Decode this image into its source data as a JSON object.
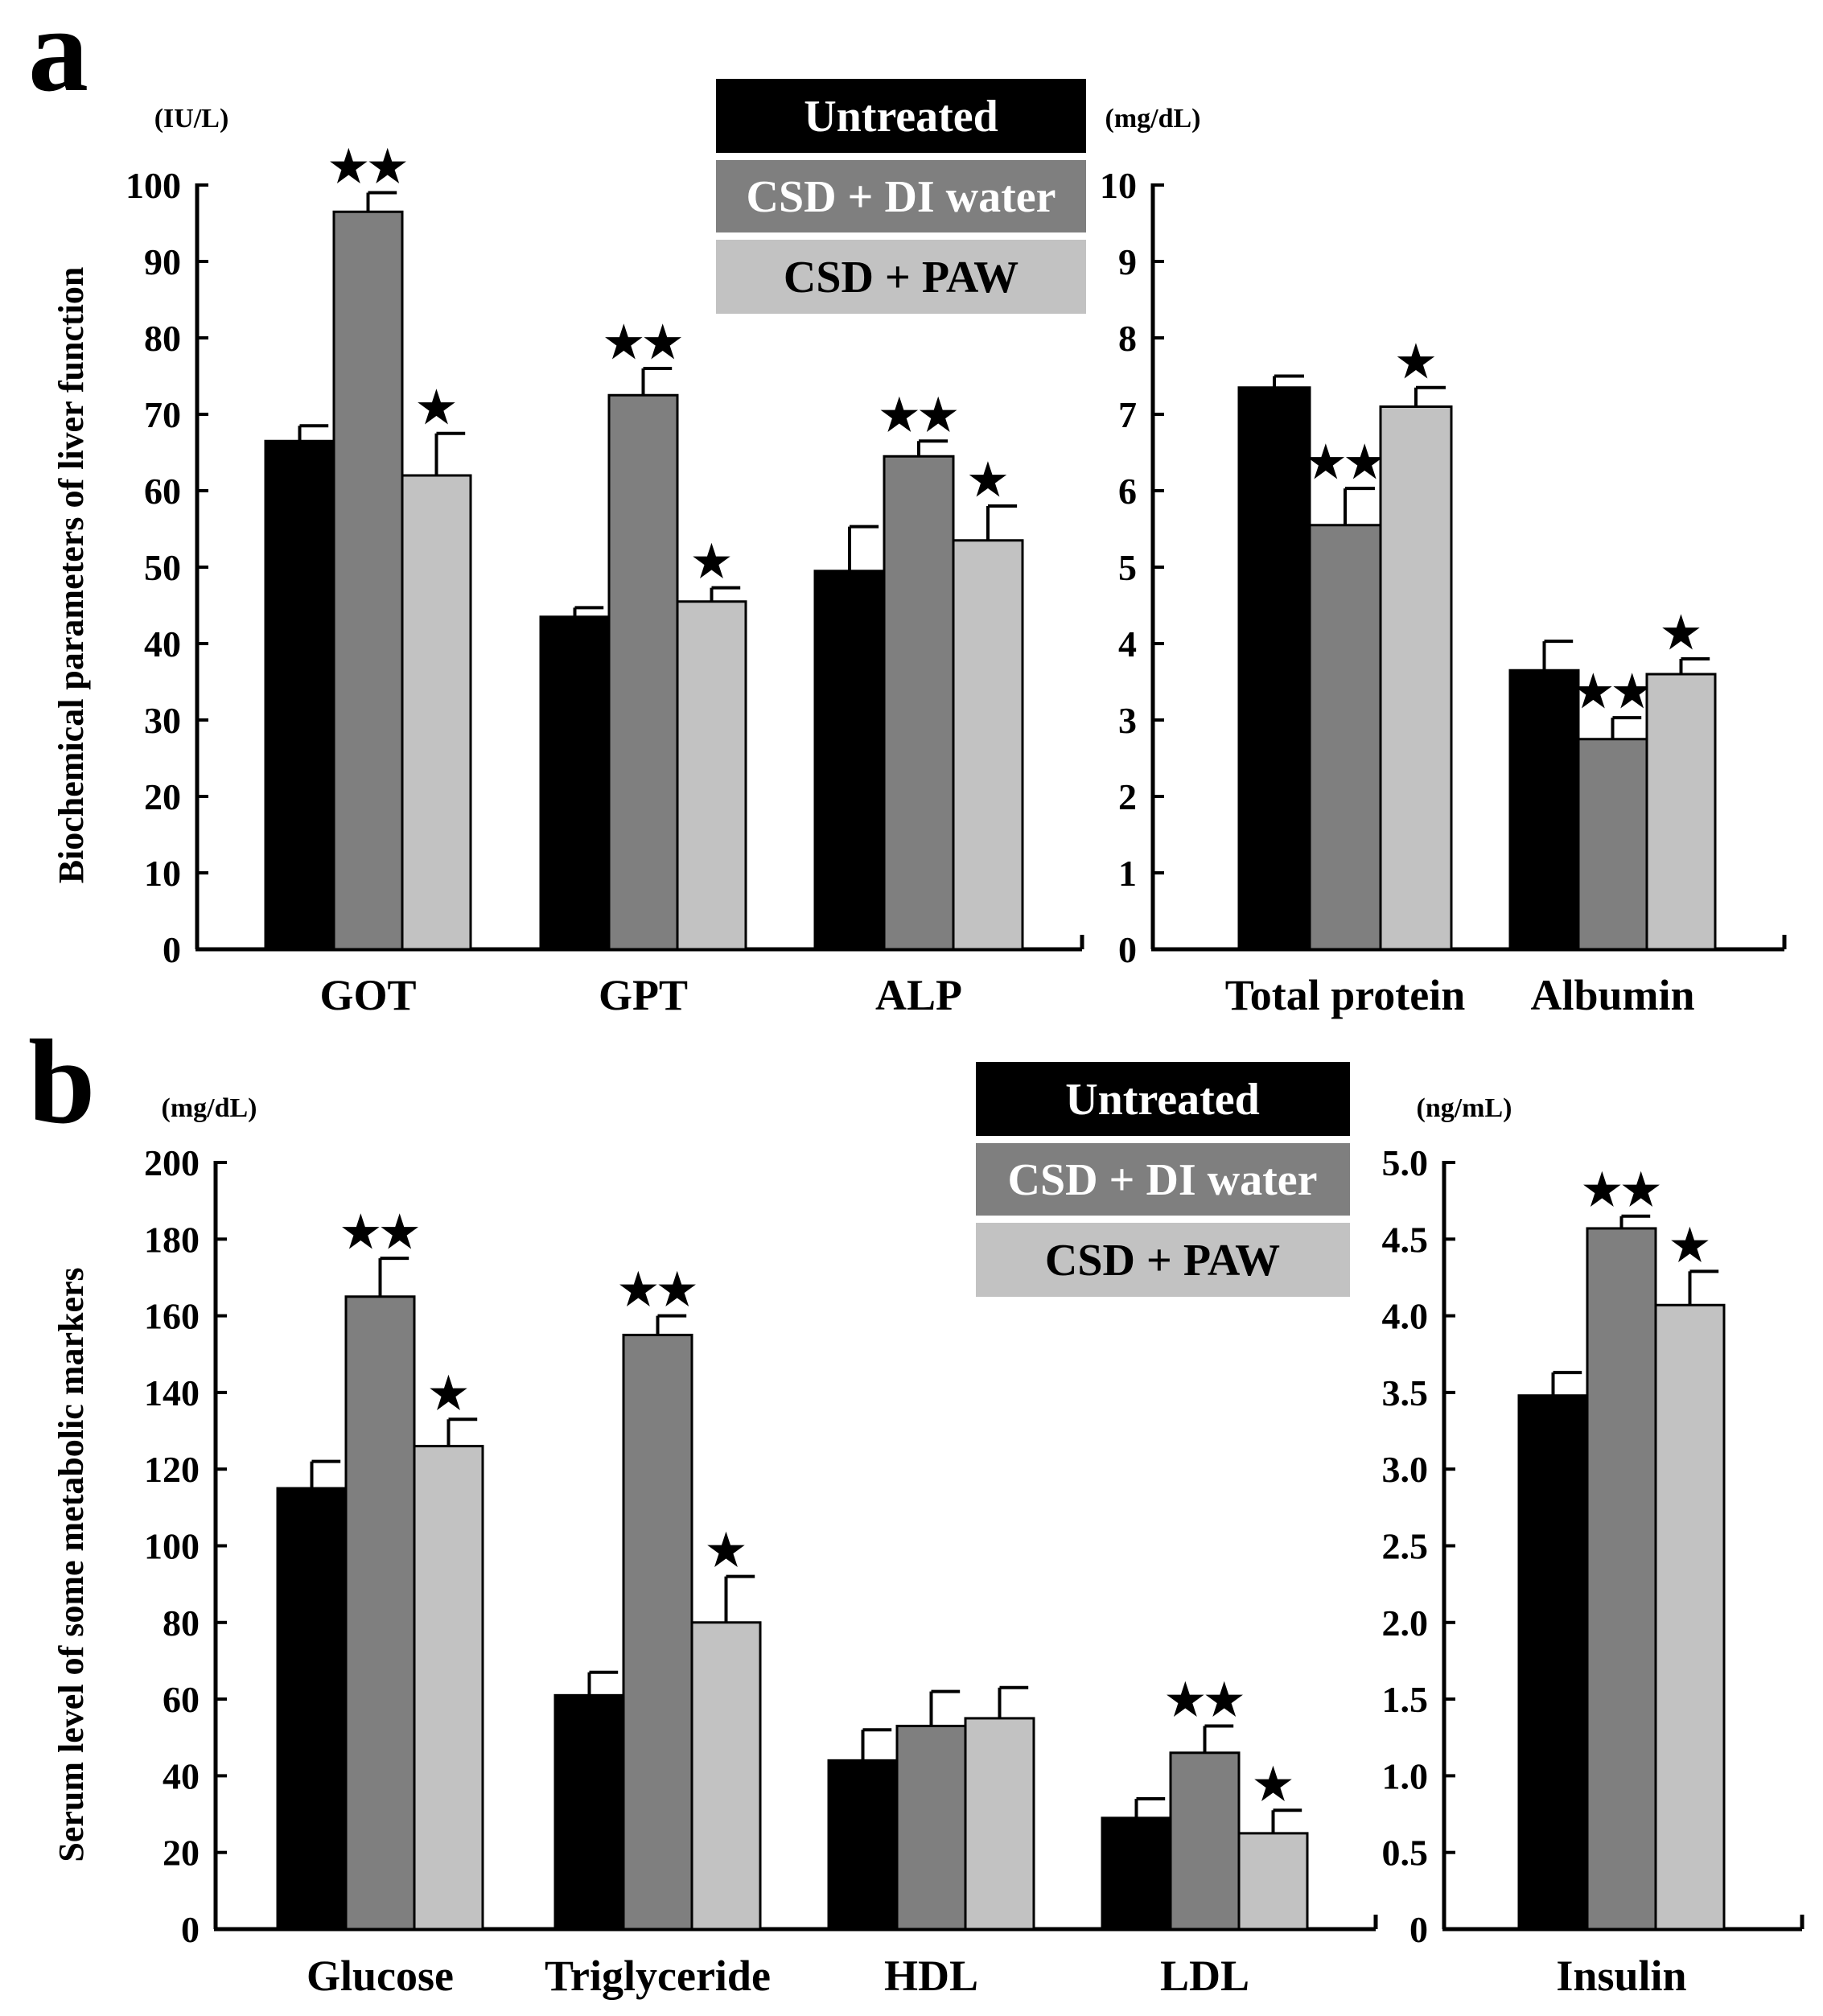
{
  "colors": {
    "untreated": "#000000",
    "di_water": "#7f7f7f",
    "paw": "#c2c2c2",
    "axis": "#000000",
    "background": "#ffffff"
  },
  "legend": {
    "items": [
      {
        "label": "Untreated",
        "series": "untreated",
        "text_color": "#ffffff"
      },
      {
        "label": "CSD + DI water",
        "series": "di_water",
        "text_color": "#ffffff"
      },
      {
        "label": "CSD + PAW",
        "series": "paw",
        "text_color": "#000000"
      }
    ]
  },
  "star_icon": "star-glyph",
  "panels": [
    {
      "label": "a",
      "ylabel": "Biochemical parameters of liver function"
    },
    {
      "label": "b",
      "ylabel": "Serum level of some metabolic markers"
    }
  ],
  "chart_data": [
    {
      "id": "a1",
      "panel": "a",
      "type": "bar",
      "unit": "(IU/L)",
      "ylim": [
        0,
        100
      ],
      "yticks": [
        0,
        10,
        20,
        30,
        40,
        50,
        60,
        70,
        80,
        90,
        100
      ],
      "categories": [
        "GOT",
        "GPT",
        "ALP"
      ],
      "series": [
        {
          "name": "Untreated",
          "key": "untreated",
          "values": [
            66.5,
            43.5,
            49.5
          ],
          "errors": [
            2,
            1.2,
            5.8
          ],
          "sig": [
            "",
            "",
            ""
          ]
        },
        {
          "name": "CSD + DI water",
          "key": "di_water",
          "values": [
            96.5,
            72.5,
            64.5
          ],
          "errors": [
            2.5,
            3.5,
            2
          ],
          "sig": [
            "★★",
            "★★",
            "★★"
          ]
        },
        {
          "name": "CSD + PAW",
          "key": "paw",
          "values": [
            62,
            45.5,
            53.5
          ],
          "errors": [
            5.5,
            1.8,
            4.5
          ],
          "sig": [
            "★",
            "★",
            "★"
          ]
        }
      ]
    },
    {
      "id": "a2",
      "panel": "a",
      "type": "bar",
      "unit": "(mg/dL)",
      "ylim": [
        0,
        10
      ],
      "yticks": [
        0,
        1,
        2,
        3,
        4,
        5,
        6,
        7,
        8,
        9,
        10
      ],
      "categories": [
        "Total protein",
        "Albumin"
      ],
      "series": [
        {
          "name": "Untreated",
          "key": "untreated",
          "values": [
            7.35,
            3.65
          ],
          "errors": [
            0.15,
            0.38
          ],
          "sig": [
            "",
            ""
          ]
        },
        {
          "name": "CSD + DI water",
          "key": "di_water",
          "values": [
            5.55,
            2.75
          ],
          "errors": [
            0.48,
            0.28
          ],
          "sig": [
            "★★",
            "★★"
          ]
        },
        {
          "name": "CSD + PAW",
          "key": "paw",
          "values": [
            7.1,
            3.6
          ],
          "errors": [
            0.25,
            0.2
          ],
          "sig": [
            "★",
            "★"
          ]
        }
      ]
    },
    {
      "id": "b1",
      "panel": "b",
      "type": "bar",
      "unit": "(mg/dL)",
      "ylim": [
        0,
        200
      ],
      "yticks": [
        0,
        20,
        40,
        60,
        80,
        100,
        120,
        140,
        160,
        180,
        200
      ],
      "categories": [
        "Glucose",
        "Triglyceride",
        "HDL",
        "LDL"
      ],
      "series": [
        {
          "name": "Untreated",
          "key": "untreated",
          "values": [
            115,
            61,
            44,
            29
          ],
          "errors": [
            7,
            6,
            8,
            5
          ],
          "sig": [
            "",
            "",
            "",
            ""
          ]
        },
        {
          "name": "CSD + DI water",
          "key": "di_water",
          "values": [
            165,
            155,
            53,
            46
          ],
          "errors": [
            10,
            5,
            9,
            7
          ],
          "sig": [
            "★★",
            "★★",
            "",
            "★★"
          ]
        },
        {
          "name": "CSD + PAW",
          "key": "paw",
          "values": [
            126,
            80,
            55,
            25
          ],
          "errors": [
            7,
            12,
            8,
            6
          ],
          "sig": [
            "★",
            "★",
            "",
            "★"
          ]
        }
      ]
    },
    {
      "id": "b2",
      "panel": "b",
      "type": "bar",
      "unit": "(ng/mL)",
      "ylim": [
        0,
        5.0
      ],
      "yticks": [
        "0",
        "0.5",
        "1.0",
        "1.5",
        "2.0",
        "2.5",
        "3.0",
        "3.5",
        "4.0",
        "4.5",
        "5.0"
      ],
      "categories": [
        "Insulin"
      ],
      "series": [
        {
          "name": "Untreated",
          "key": "untreated",
          "values": [
            3.48
          ],
          "errors": [
            0.15
          ],
          "sig": [
            ""
          ]
        },
        {
          "name": "CSD + DI water",
          "key": "di_water",
          "values": [
            4.57
          ],
          "errors": [
            0.08
          ],
          "sig": [
            "★★"
          ]
        },
        {
          "name": "CSD + PAW",
          "key": "paw",
          "values": [
            4.07
          ],
          "errors": [
            0.22
          ],
          "sig": [
            "★"
          ]
        }
      ]
    }
  ]
}
